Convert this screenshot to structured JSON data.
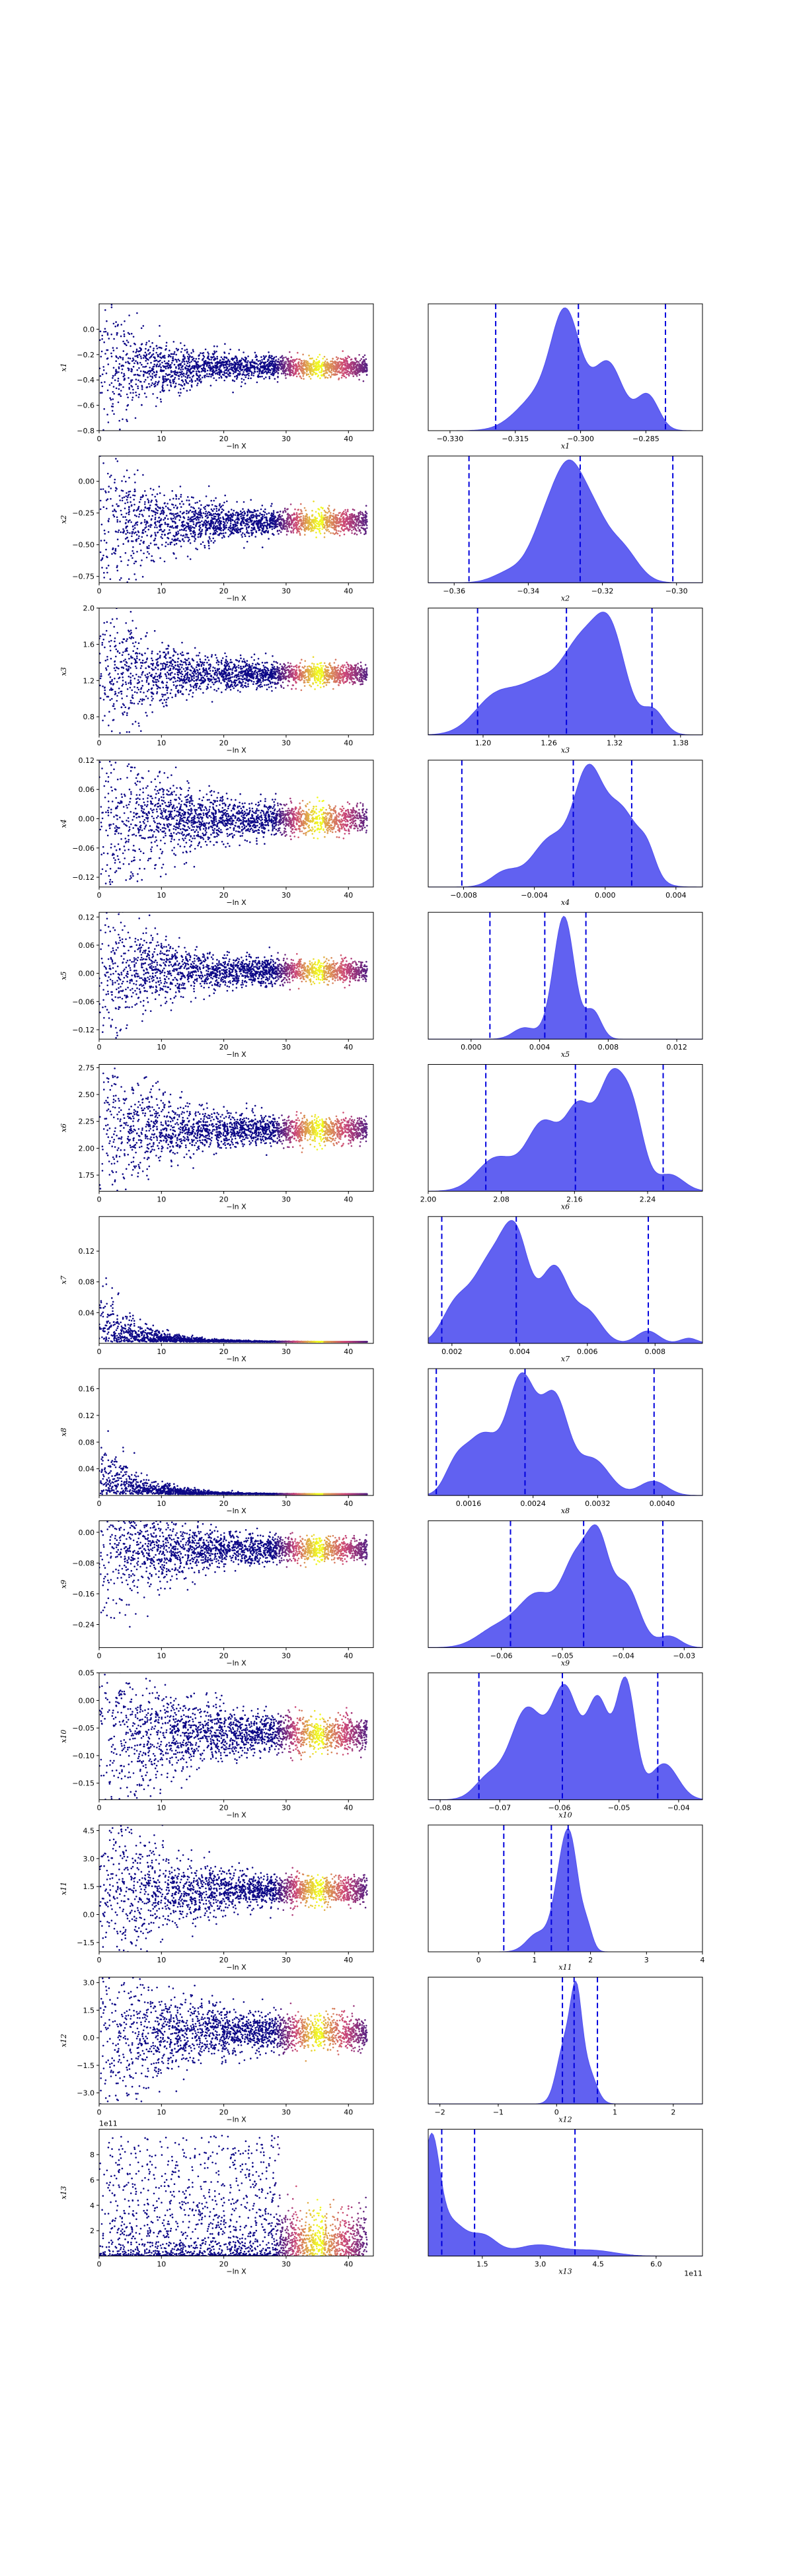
{
  "chart_data": {
    "type": "scatter",
    "rows": [
      {
        "trace": {
          "ylabel": "x1",
          "yticks": [
            0.0,
            -0.2,
            -0.4,
            -0.6,
            -0.8
          ],
          "ylim": [
            -0.8,
            0.2
          ],
          "center": -0.3,
          "spread": 0.1
        },
        "posterior": {
          "xlabel": "x1",
          "xticks": [
            -0.33,
            -0.315,
            -0.3,
            -0.285
          ],
          "xlim": [
            -0.335,
            -0.272
          ],
          "quantiles": [
            -0.3195,
            -0.3005,
            -0.2805
          ],
          "shape": "a"
        }
      },
      {
        "trace": {
          "ylabel": "x2",
          "yticks": [
            0.0,
            -0.25,
            -0.5,
            -0.75
          ],
          "ylim": [
            -0.8,
            0.2
          ],
          "center": -0.32,
          "spread": 0.12
        },
        "posterior": {
          "xlabel": "x2",
          "xticks": [
            -0.36,
            -0.34,
            -0.32,
            -0.3
          ],
          "xlim": [
            -0.367,
            -0.293
          ],
          "quantiles": [
            -0.356,
            -0.326,
            -0.301
          ],
          "shape": "b"
        }
      },
      {
        "trace": {
          "ylabel": "x3",
          "yticks": [
            2.0,
            1.6,
            1.2,
            0.8
          ],
          "ylim": [
            0.6,
            2.0
          ],
          "center": 1.27,
          "spread": 0.15
        },
        "posterior": {
          "xlabel": "x3",
          "xticks": [
            1.2,
            1.26,
            1.32,
            1.38
          ],
          "xlim": [
            1.15,
            1.4
          ],
          "quantiles": [
            1.195,
            1.276,
            1.354
          ],
          "shape": "c"
        }
      },
      {
        "trace": {
          "ylabel": "x4",
          "yticks": [
            0.12,
            0.06,
            0.0,
            -0.06,
            -0.12
          ],
          "ylim": [
            -0.14,
            0.12
          ],
          "center": -0.001,
          "spread": 0.04
        },
        "posterior": {
          "xlabel": "x4",
          "xticks": [
            -0.008,
            -0.004,
            0.0,
            0.004
          ],
          "xlim": [
            -0.01,
            0.0055
          ],
          "quantiles": [
            -0.0081,
            -0.0018,
            0.0015
          ],
          "shape": "d"
        }
      },
      {
        "trace": {
          "ylabel": "x5",
          "yticks": [
            0.12,
            0.06,
            0.0,
            -0.06,
            -0.12
          ],
          "ylim": [
            -0.14,
            0.13
          ],
          "center": 0.0043,
          "spread": 0.03
        },
        "posterior": {
          "xlabel": "x5",
          "xticks": [
            0.0,
            0.004,
            0.008,
            0.012
          ],
          "xlim": [
            -0.0025,
            0.0135
          ],
          "quantiles": [
            0.0011,
            0.0043,
            0.0067
          ],
          "shape": "e"
        }
      },
      {
        "trace": {
          "ylabel": "x6",
          "yticks": [
            2.75,
            2.5,
            2.25,
            2.0,
            1.75
          ],
          "ylim": [
            1.6,
            2.78
          ],
          "center": 2.17,
          "spread": 0.15
        },
        "posterior": {
          "xlabel": "x6",
          "xticks": [
            2.0,
            2.08,
            2.16,
            2.24
          ],
          "xlim": [
            2.0,
            2.3
          ],
          "quantiles": [
            2.063,
            2.161,
            2.257
          ],
          "shape": "f"
        }
      },
      {
        "trace": {
          "ylabel": "x7",
          "yticks": [
            0.12,
            0.08,
            0.04
          ],
          "ylim": [
            0.0,
            0.165
          ],
          "center": 0.004,
          "spread": 0.002
        },
        "posterior": {
          "xlabel": "x7",
          "xticks": [
            0.002,
            0.004,
            0.006,
            0.008
          ],
          "xlim": [
            0.0013,
            0.0094
          ],
          "quantiles": [
            0.0017,
            0.0039,
            0.0078
          ],
          "shape": "g"
        }
      },
      {
        "trace": {
          "ylabel": "x8",
          "yticks": [
            0.16,
            0.12,
            0.08,
            0.04
          ],
          "ylim": [
            0.0,
            0.19
          ],
          "center": 0.0024,
          "spread": 0.001
        },
        "posterior": {
          "xlabel": "x8",
          "xticks": [
            0.0016,
            0.0024,
            0.0032,
            0.004
          ],
          "xlim": [
            0.0011,
            0.0045
          ],
          "quantiles": [
            0.0012,
            0.0023,
            0.0039
          ],
          "shape": "h"
        }
      },
      {
        "trace": {
          "ylabel": "x9",
          "yticks": [
            -0.0,
            -0.08,
            -0.16,
            -0.24
          ],
          "ylim": [
            -0.3,
            0.03
          ],
          "center": -0.045,
          "spread": 0.04
        },
        "posterior": {
          "xlabel": "x9",
          "xticks": [
            -0.06,
            -0.05,
            -0.04,
            -0.03
          ],
          "xlim": [
            -0.072,
            -0.027
          ],
          "quantiles": [
            -0.0585,
            -0.0465,
            -0.0335
          ],
          "shape": "i"
        }
      },
      {
        "trace": {
          "ylabel": "x10",
          "yticks": [
            0.05,
            0.0,
            -0.05,
            -0.1,
            -0.15
          ],
          "ylim": [
            -0.18,
            0.05
          ],
          "center": -0.06,
          "spread": 0.04
        },
        "posterior": {
          "xlabel": "x10",
          "xticks": [
            -0.08,
            -0.07,
            -0.06,
            -0.05,
            -0.04
          ],
          "xlim": [
            -0.082,
            -0.036
          ],
          "quantiles": [
            -0.0735,
            -0.0595,
            -0.0435
          ],
          "shape": "j"
        }
      },
      {
        "trace": {
          "ylabel": "x11",
          "yticks": [
            4.5,
            3.0,
            1.5,
            0.0,
            -1.5
          ],
          "ylim": [
            -2.0,
            4.8
          ],
          "center": 1.3,
          "spread": 1.0
        },
        "posterior": {
          "xlabel": "x11",
          "xticks": [
            0,
            1,
            2,
            3,
            4
          ],
          "xlim": [
            -0.9,
            4.0
          ],
          "quantiles": [
            0.45,
            1.3,
            1.6
          ],
          "shape": "k"
        }
      },
      {
        "trace": {
          "ylabel": "x12",
          "yticks": [
            3.0,
            1.5,
            0.0,
            -1.5,
            -3.0
          ],
          "ylim": [
            -3.6,
            3.3
          ],
          "center": 0.3,
          "spread": 1.2
        },
        "posterior": {
          "xlabel": "x12",
          "xticks": [
            -2,
            -1,
            0,
            1,
            2
          ],
          "xlim": [
            -2.2,
            2.5
          ],
          "quantiles": [
            0.1,
            0.3,
            0.7
          ],
          "shape": "l"
        }
      },
      {
        "trace": {
          "ylabel": "x13",
          "yticks": [
            8,
            6,
            4,
            2
          ],
          "ylim": [
            0,
            10
          ],
          "offset": "1e11",
          "center": 1.0,
          "spread": 1.5
        },
        "posterior": {
          "xlabel": "x13",
          "xticks": [
            1.5,
            3.0,
            4.5,
            6.0
          ],
          "xlim": [
            0.1,
            7.2
          ],
          "offset": "1e11",
          "quantiles": [
            0.45,
            1.3,
            3.9
          ],
          "shape": "m"
        }
      }
    ],
    "trace_xlabel": "−ln X",
    "trace_xticks": [
      0,
      10,
      20,
      30,
      40
    ],
    "trace_xlim": [
      0,
      44
    ],
    "colors": {
      "posterior_fill": "#5050f0",
      "quantile_line": "#0000dd",
      "scatter_low": "#0d0887",
      "scatter_mid": "#cc4778",
      "scatter_high": "#f0f921",
      "axes": "#000000"
    }
  }
}
